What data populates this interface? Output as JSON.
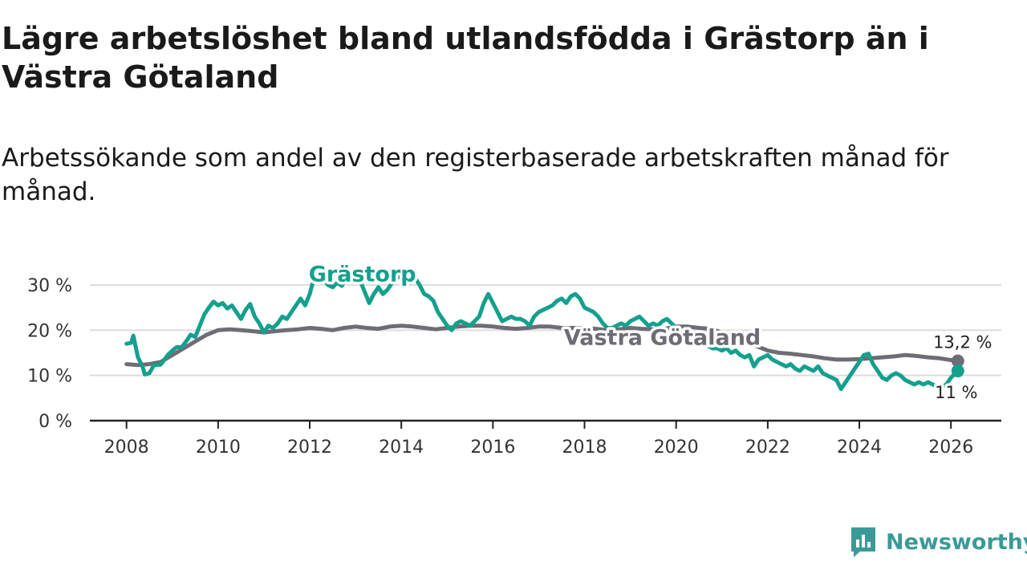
{
  "title": "Lägre arbetslöshet bland utlandsfödda i Grästorp än i Västra Götaland",
  "subtitle": "Arbetssökande som andel av den registerbaserade arbetskraften månad för månad.",
  "brand": "Newsworthy",
  "colors": {
    "grastorp": "#14a08e",
    "vastra": "#6e6c75",
    "grid": "#dcdcdc",
    "axis": "#222222",
    "brand": "#3a9a98"
  },
  "chart_data": {
    "type": "line",
    "title": "Lägre arbetslöshet bland utlandsfödda i Grästorp än i Västra Götaland",
    "xlabel": "",
    "ylabel": "",
    "xlim": [
      2007.2,
      2027.1
    ],
    "ylim": [
      0,
      30
    ],
    "x_ticks": [
      2008,
      2010,
      2012,
      2014,
      2016,
      2018,
      2020,
      2022,
      2024,
      2026
    ],
    "x_tick_labels": [
      "2008",
      "2010",
      "2012",
      "2014",
      "2016",
      "2018",
      "2020",
      "2022",
      "2024",
      "2026"
    ],
    "y_ticks": [
      0,
      10,
      20,
      30
    ],
    "y_tick_labels": [
      "0 %",
      "10 %",
      "20 %",
      "30 %"
    ],
    "grid": true,
    "series": [
      {
        "name": "Grästorp",
        "color": "#14a08e",
        "end_label": "11 %",
        "points": [
          [
            2008.0,
            17.0
          ],
          [
            2008.1,
            17.2
          ],
          [
            2008.15,
            18.8
          ],
          [
            2008.25,
            14.0
          ],
          [
            2008.35,
            12.0
          ],
          [
            2008.4,
            10.2
          ],
          [
            2008.5,
            10.5
          ],
          [
            2008.6,
            12.3
          ],
          [
            2008.75,
            12.4
          ],
          [
            2008.9,
            14.5
          ],
          [
            2009.0,
            15.5
          ],
          [
            2009.1,
            16.3
          ],
          [
            2009.2,
            16.2
          ],
          [
            2009.3,
            17.5
          ],
          [
            2009.4,
            19.0
          ],
          [
            2009.5,
            18.5
          ],
          [
            2009.6,
            21.0
          ],
          [
            2009.7,
            23.5
          ],
          [
            2009.8,
            25.0
          ],
          [
            2009.9,
            26.3
          ],
          [
            2010.0,
            25.5
          ],
          [
            2010.1,
            26.0
          ],
          [
            2010.2,
            24.8
          ],
          [
            2010.3,
            25.5
          ],
          [
            2010.4,
            24.0
          ],
          [
            2010.5,
            22.5
          ],
          [
            2010.6,
            24.5
          ],
          [
            2010.7,
            25.8
          ],
          [
            2010.8,
            23.0
          ],
          [
            2010.9,
            21.5
          ],
          [
            2011.0,
            19.5
          ],
          [
            2011.1,
            21.0
          ],
          [
            2011.2,
            20.5
          ],
          [
            2011.3,
            21.5
          ],
          [
            2011.4,
            23.0
          ],
          [
            2011.5,
            22.5
          ],
          [
            2011.6,
            24.0
          ],
          [
            2011.7,
            25.5
          ],
          [
            2011.8,
            27.0
          ],
          [
            2011.9,
            25.5
          ],
          [
            2012.0,
            28.0
          ],
          [
            2012.1,
            31.8
          ],
          [
            2012.2,
            33.0
          ],
          [
            2012.3,
            31.5
          ],
          [
            2012.4,
            30.0
          ],
          [
            2012.5,
            29.5
          ],
          [
            2012.6,
            30.5
          ],
          [
            2012.7,
            29.8
          ],
          [
            2012.8,
            31.5
          ],
          [
            2012.9,
            32.5
          ],
          [
            2013.0,
            31.5
          ],
          [
            2013.1,
            31.0
          ],
          [
            2013.2,
            28.5
          ],
          [
            2013.3,
            26.0
          ],
          [
            2013.4,
            28.0
          ],
          [
            2013.5,
            29.5
          ],
          [
            2013.6,
            28.0
          ],
          [
            2013.7,
            29.0
          ],
          [
            2013.8,
            30.5
          ],
          [
            2013.9,
            31.5
          ],
          [
            2014.0,
            32.0
          ],
          [
            2014.1,
            31.0
          ],
          [
            2014.2,
            30.5
          ],
          [
            2014.3,
            31.5
          ],
          [
            2014.4,
            30.0
          ],
          [
            2014.5,
            28.0
          ],
          [
            2014.6,
            27.5
          ],
          [
            2014.7,
            26.5
          ],
          [
            2014.8,
            24.0
          ],
          [
            2014.9,
            22.5
          ],
          [
            2015.0,
            21.0
          ],
          [
            2015.1,
            20.0
          ],
          [
            2015.2,
            21.5
          ],
          [
            2015.3,
            22.0
          ],
          [
            2015.4,
            21.5
          ],
          [
            2015.5,
            21.0
          ],
          [
            2015.6,
            22.0
          ],
          [
            2015.7,
            23.0
          ],
          [
            2015.8,
            26.0
          ],
          [
            2015.9,
            28.0
          ],
          [
            2016.0,
            26.0
          ],
          [
            2016.1,
            24.0
          ],
          [
            2016.2,
            22.0
          ],
          [
            2016.3,
            22.5
          ],
          [
            2016.4,
            23.0
          ],
          [
            2016.5,
            22.5
          ],
          [
            2016.6,
            22.5
          ],
          [
            2016.7,
            22.0
          ],
          [
            2016.8,
            21.0
          ],
          [
            2016.9,
            23.0
          ],
          [
            2017.0,
            24.0
          ],
          [
            2017.1,
            24.5
          ],
          [
            2017.2,
            25.0
          ],
          [
            2017.3,
            25.5
          ],
          [
            2017.4,
            26.5
          ],
          [
            2017.5,
            27.0
          ],
          [
            2017.6,
            26.0
          ],
          [
            2017.7,
            27.5
          ],
          [
            2017.8,
            28.0
          ],
          [
            2017.9,
            27.0
          ],
          [
            2018.0,
            25.0
          ],
          [
            2018.1,
            24.5
          ],
          [
            2018.2,
            24.0
          ],
          [
            2018.3,
            23.0
          ],
          [
            2018.4,
            21.5
          ],
          [
            2018.5,
            20.5
          ],
          [
            2018.6,
            20.5
          ],
          [
            2018.7,
            21.0
          ],
          [
            2018.8,
            21.5
          ],
          [
            2018.9,
            21.0
          ],
          [
            2019.0,
            22.0
          ],
          [
            2019.1,
            22.5
          ],
          [
            2019.2,
            23.0
          ],
          [
            2019.3,
            22.0
          ],
          [
            2019.4,
            21.0
          ],
          [
            2019.5,
            21.5
          ],
          [
            2019.6,
            21.0
          ],
          [
            2019.7,
            22.0
          ],
          [
            2019.8,
            22.5
          ],
          [
            2019.9,
            21.5
          ],
          [
            2020.0,
            20.5
          ],
          [
            2020.1,
            19.5
          ],
          [
            2020.2,
            18.5
          ],
          [
            2020.3,
            18.0
          ],
          [
            2020.4,
            17.5
          ],
          [
            2020.5,
            17.0
          ],
          [
            2020.6,
            17.5
          ],
          [
            2020.7,
            16.5
          ],
          [
            2020.8,
            16.0
          ],
          [
            2020.9,
            16.0
          ],
          [
            2021.0,
            15.5
          ],
          [
            2021.1,
            16.0
          ],
          [
            2021.2,
            15.0
          ],
          [
            2021.3,
            15.5
          ],
          [
            2021.4,
            14.5
          ],
          [
            2021.5,
            14.0
          ],
          [
            2021.6,
            14.5
          ],
          [
            2021.7,
            12.0
          ],
          [
            2021.8,
            13.5
          ],
          [
            2021.9,
            14.0
          ],
          [
            2022.0,
            14.5
          ],
          [
            2022.1,
            13.5
          ],
          [
            2022.2,
            13.0
          ],
          [
            2022.3,
            12.5
          ],
          [
            2022.4,
            12.0
          ],
          [
            2022.5,
            12.5
          ],
          [
            2022.6,
            11.5
          ],
          [
            2022.7,
            11.0
          ],
          [
            2022.8,
            12.0
          ],
          [
            2022.9,
            11.5
          ],
          [
            2023.0,
            11.0
          ],
          [
            2023.1,
            12.0
          ],
          [
            2023.2,
            10.5
          ],
          [
            2023.3,
            10.0
          ],
          [
            2023.4,
            9.5
          ],
          [
            2023.5,
            9.0
          ],
          [
            2023.6,
            7.0
          ],
          [
            2023.7,
            8.5
          ],
          [
            2023.8,
            10.0
          ],
          [
            2023.9,
            11.5
          ],
          [
            2024.0,
            13.0
          ],
          [
            2024.1,
            14.5
          ],
          [
            2024.2,
            14.8
          ],
          [
            2024.3,
            12.5
          ],
          [
            2024.4,
            11.0
          ],
          [
            2024.5,
            9.5
          ],
          [
            2024.6,
            9.0
          ],
          [
            2024.7,
            10.0
          ],
          [
            2024.8,
            10.5
          ],
          [
            2024.9,
            10.0
          ],
          [
            2025.0,
            9.0
          ],
          [
            2025.1,
            8.5
          ],
          [
            2025.2,
            8.0
          ],
          [
            2025.3,
            8.5
          ],
          [
            2025.4,
            8.0
          ],
          [
            2025.5,
            8.5
          ],
          [
            2025.6,
            8.0
          ],
          [
            2025.7,
            7.5
          ],
          [
            2025.8,
            7.5
          ],
          [
            2025.9,
            8.0
          ],
          [
            2026.0,
            9.5
          ],
          [
            2026.1,
            10.5
          ],
          [
            2026.15,
            11.0
          ]
        ]
      },
      {
        "name": "Västra Götaland",
        "color": "#6e6c75",
        "end_label": "13,2 %",
        "points": [
          [
            2008.0,
            12.5
          ],
          [
            2008.25,
            12.3
          ],
          [
            2008.5,
            12.5
          ],
          [
            2008.75,
            13.0
          ],
          [
            2009.0,
            14.5
          ],
          [
            2009.25,
            16.0
          ],
          [
            2009.5,
            17.5
          ],
          [
            2009.75,
            19.0
          ],
          [
            2010.0,
            20.0
          ],
          [
            2010.25,
            20.2
          ],
          [
            2010.5,
            20.0
          ],
          [
            2010.75,
            19.8
          ],
          [
            2011.0,
            19.5
          ],
          [
            2011.25,
            19.8
          ],
          [
            2011.5,
            20.0
          ],
          [
            2011.75,
            20.2
          ],
          [
            2012.0,
            20.5
          ],
          [
            2012.25,
            20.3
          ],
          [
            2012.5,
            20.0
          ],
          [
            2012.75,
            20.5
          ],
          [
            2013.0,
            20.8
          ],
          [
            2013.25,
            20.5
          ],
          [
            2013.5,
            20.3
          ],
          [
            2013.75,
            20.8
          ],
          [
            2014.0,
            21.0
          ],
          [
            2014.25,
            20.8
          ],
          [
            2014.5,
            20.5
          ],
          [
            2014.75,
            20.2
          ],
          [
            2015.0,
            20.5
          ],
          [
            2015.25,
            20.8
          ],
          [
            2015.5,
            21.0
          ],
          [
            2015.75,
            21.0
          ],
          [
            2016.0,
            20.8
          ],
          [
            2016.25,
            20.5
          ],
          [
            2016.5,
            20.3
          ],
          [
            2016.75,
            20.5
          ],
          [
            2017.0,
            20.8
          ],
          [
            2017.25,
            20.8
          ],
          [
            2017.5,
            20.5
          ],
          [
            2017.75,
            20.5
          ],
          [
            2018.0,
            20.5
          ],
          [
            2018.25,
            20.3
          ],
          [
            2018.5,
            20.0
          ],
          [
            2018.75,
            20.2
          ],
          [
            2019.0,
            20.5
          ],
          [
            2019.25,
            20.3
          ],
          [
            2019.5,
            20.2
          ],
          [
            2019.75,
            20.3
          ],
          [
            2020.0,
            20.8
          ],
          [
            2020.25,
            20.8
          ],
          [
            2020.5,
            20.5
          ],
          [
            2020.75,
            20.3
          ],
          [
            2021.0,
            19.5
          ],
          [
            2021.25,
            18.5
          ],
          [
            2021.5,
            17.5
          ],
          [
            2021.75,
            16.5
          ],
          [
            2022.0,
            15.5
          ],
          [
            2022.25,
            15.0
          ],
          [
            2022.5,
            14.8
          ],
          [
            2022.75,
            14.5
          ],
          [
            2023.0,
            14.2
          ],
          [
            2023.25,
            13.8
          ],
          [
            2023.5,
            13.5
          ],
          [
            2023.75,
            13.5
          ],
          [
            2024.0,
            13.6
          ],
          [
            2024.25,
            13.8
          ],
          [
            2024.5,
            14.0
          ],
          [
            2024.75,
            14.2
          ],
          [
            2025.0,
            14.5
          ],
          [
            2025.25,
            14.3
          ],
          [
            2025.5,
            14.0
          ],
          [
            2025.75,
            13.8
          ],
          [
            2026.0,
            13.4
          ],
          [
            2026.15,
            13.2
          ]
        ]
      }
    ],
    "annotations": [
      "Grästorp",
      "Västra Götaland",
      "13,2 %",
      "11 %"
    ]
  }
}
